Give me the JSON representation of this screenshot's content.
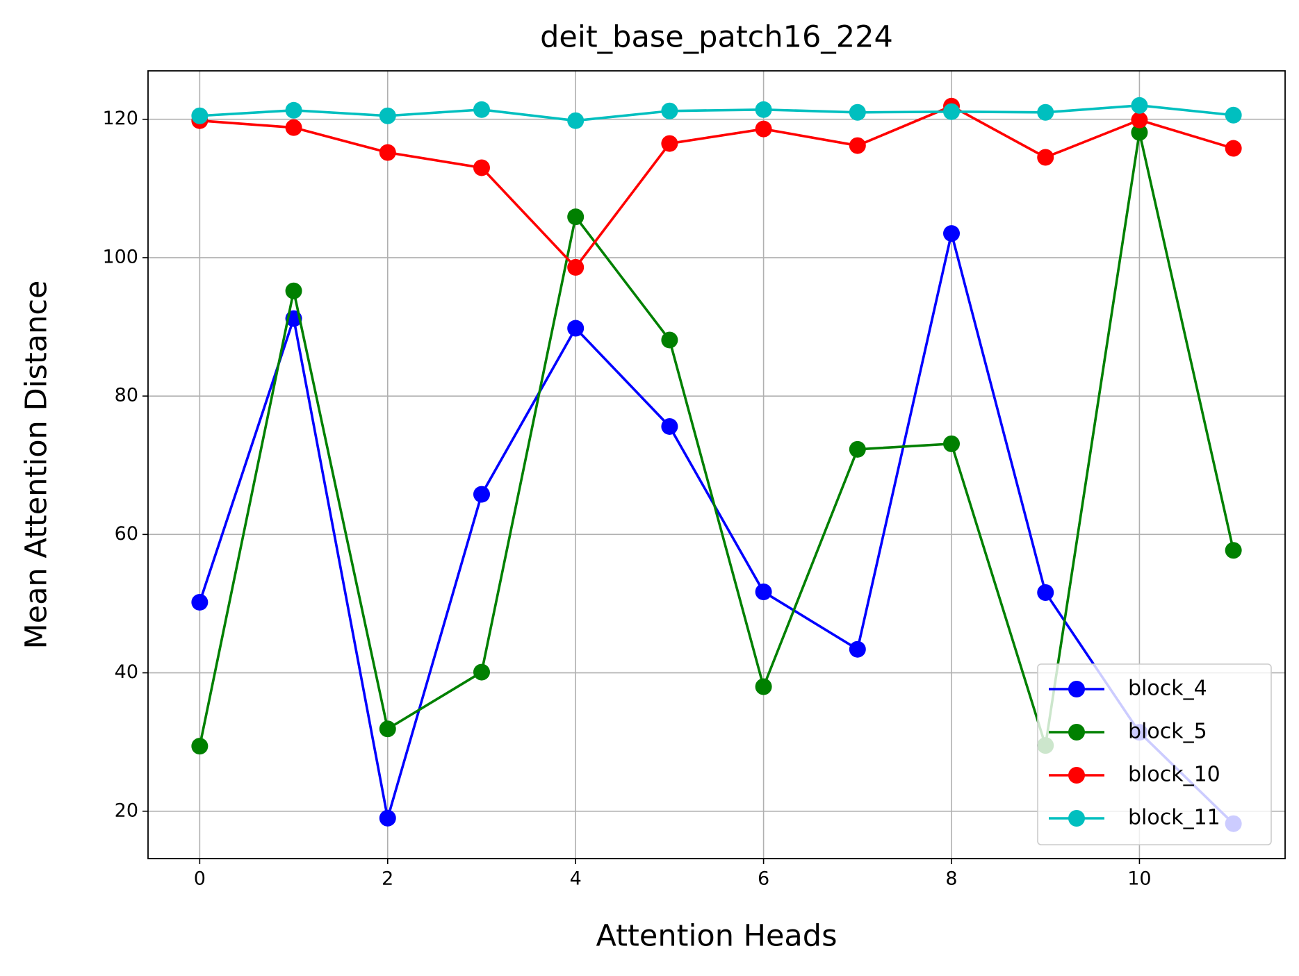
{
  "chart_data": {
    "type": "line",
    "title": "deit_base_patch16_224",
    "x_label": "Attention Heads",
    "y_label": "Mean Attention Distance",
    "x": [
      0,
      1,
      2,
      3,
      4,
      5,
      6,
      7,
      8,
      9,
      10,
      11
    ],
    "series": [
      {
        "name": "block_4",
        "color": "#0000ff",
        "values": [
          50.2,
          91.2,
          19.0,
          65.8,
          89.8,
          75.6,
          51.7,
          43.4,
          103.5,
          51.6,
          31.4,
          18.2
        ]
      },
      {
        "name": "block_5",
        "color": "#008000",
        "values": [
          29.4,
          95.2,
          31.9,
          40.1,
          105.9,
          88.1,
          38.0,
          72.3,
          73.1,
          29.5,
          118.1,
          57.7
        ]
      },
      {
        "name": "block_10",
        "color": "#ff0000",
        "values": [
          119.8,
          118.8,
          115.2,
          113.0,
          98.6,
          116.5,
          118.6,
          116.2,
          121.9,
          114.5,
          119.9,
          115.8
        ]
      },
      {
        "name": "block_11",
        "color": "#00bfbf",
        "values": [
          120.5,
          121.3,
          120.5,
          121.4,
          119.8,
          121.2,
          121.4,
          121.0,
          121.1,
          121.0,
          122.0,
          120.6
        ]
      }
    ],
    "xlim": [
      -0.55,
      11.55
    ],
    "ylim": [
      13.15,
      127.0
    ],
    "xticks": [
      0,
      2,
      4,
      6,
      8,
      10
    ],
    "yticks": [
      20,
      40,
      60,
      80,
      100,
      120
    ],
    "grid": true,
    "legend": "lower right"
  }
}
